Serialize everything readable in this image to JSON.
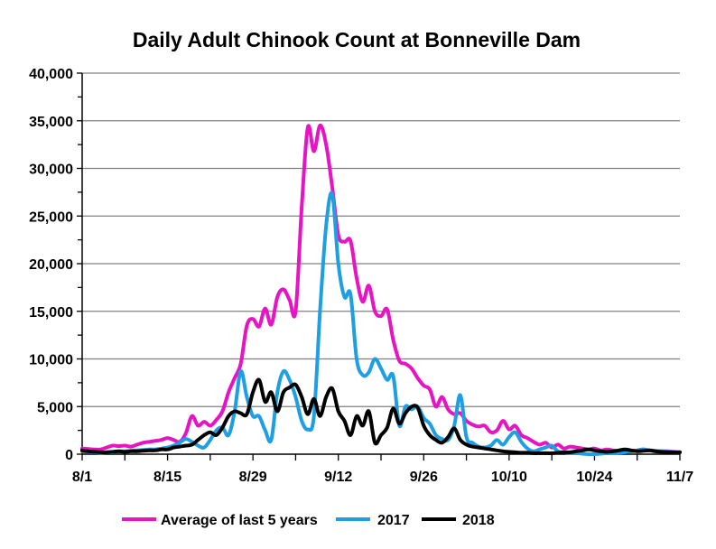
{
  "chart_data": {
    "type": "line",
    "title": "Daily Adult Chinook Count at Bonneville Dam",
    "xlabel": "",
    "ylabel": "",
    "ylim": [
      0,
      40000
    ],
    "xlim": [
      "8/1",
      "11/7"
    ],
    "grid": true,
    "legend_position": "bottom",
    "y_ticks": [
      "0",
      "5,000",
      "10,000",
      "15,000",
      "20,000",
      "25,000",
      "30,000",
      "35,000",
      "40,000"
    ],
    "y_tick_values": [
      0,
      5000,
      10000,
      15000,
      20000,
      25000,
      30000,
      35000,
      40000
    ],
    "x_ticks": [
      "8/1",
      "8/15",
      "8/29",
      "9/12",
      "9/26",
      "10/10",
      "10/24",
      "11/7"
    ],
    "x": [
      "8/1",
      "8/2",
      "8/3",
      "8/4",
      "8/5",
      "8/6",
      "8/7",
      "8/8",
      "8/9",
      "8/10",
      "8/11",
      "8/12",
      "8/13",
      "8/14",
      "8/15",
      "8/16",
      "8/17",
      "8/18",
      "8/19",
      "8/20",
      "8/21",
      "8/22",
      "8/23",
      "8/24",
      "8/25",
      "8/26",
      "8/27",
      "8/28",
      "8/29",
      "8/30",
      "8/31",
      "9/1",
      "9/2",
      "9/3",
      "9/4",
      "9/5",
      "9/6",
      "9/7",
      "9/8",
      "9/9",
      "9/10",
      "9/11",
      "9/12",
      "9/13",
      "9/14",
      "9/15",
      "9/16",
      "9/17",
      "9/18",
      "9/19",
      "9/20",
      "9/21",
      "9/22",
      "9/23",
      "9/24",
      "9/25",
      "9/26",
      "9/27",
      "9/28",
      "9/29",
      "9/30",
      "10/1",
      "10/2",
      "10/3",
      "10/4",
      "10/5",
      "10/6",
      "10/7",
      "10/8",
      "10/9",
      "10/10",
      "10/11",
      "10/12",
      "10/13",
      "10/14",
      "10/15",
      "10/16",
      "10/17",
      "10/18",
      "10/19",
      "10/20",
      "10/21",
      "10/22",
      "10/23",
      "10/24",
      "10/25",
      "10/26",
      "10/27",
      "10/28",
      "10/29",
      "10/30",
      "10/31",
      "11/1",
      "11/2",
      "11/3",
      "11/4",
      "11/5",
      "11/6",
      "11/7"
    ],
    "series": [
      {
        "name": "Average of last 5 years",
        "color": "#e614c3",
        "values": [
          600,
          550,
          500,
          500,
          700,
          900,
          850,
          900,
          800,
          1000,
          1200,
          1300,
          1400,
          1500,
          1700,
          1500,
          1300,
          2200,
          4000,
          3000,
          3400,
          3000,
          3600,
          4500,
          6500,
          8000,
          9500,
          13500,
          14200,
          13400,
          15300,
          13600,
          16500,
          17300,
          16200,
          15000,
          26000,
          34300,
          31800,
          34500,
          32500,
          28000,
          23000,
          22300,
          22400,
          18500,
          16000,
          17700,
          15000,
          14500,
          15200,
          12000,
          9800,
          9500,
          9000,
          8000,
          7200,
          6800,
          5000,
          6000,
          4700,
          4200,
          4300,
          3500,
          3100,
          2900,
          3000,
          2300,
          2500,
          3500,
          2600,
          3000,
          2000,
          1700,
          1300,
          1000,
          1200,
          700,
          1000,
          600,
          800,
          700,
          600,
          500,
          600,
          400,
          500,
          400,
          300,
          400,
          300,
          400,
          500,
          400,
          300,
          300,
          300,
          250,
          200
        ]
      },
      {
        "name": "2017",
        "color": "#1e9fe3",
        "values": [
          300,
          250,
          200,
          150,
          200,
          200,
          300,
          300,
          350,
          400,
          450,
          500,
          500,
          600,
          700,
          900,
          1200,
          1600,
          1300,
          900,
          700,
          1500,
          2500,
          2800,
          2000,
          4500,
          8700,
          6000,
          4000,
          4000,
          2500,
          1500,
          6500,
          8700,
          7800,
          6000,
          3500,
          2600,
          4000,
          15000,
          24000,
          27300,
          20000,
          16500,
          16800,
          10000,
          8300,
          8600,
          10000,
          9000,
          7800,
          8200,
          3000,
          5000,
          4700,
          5000,
          3800,
          3200,
          2000,
          1600,
          1500,
          3000,
          6200,
          1800,
          1200,
          800,
          700,
          900,
          1500,
          1000,
          1800,
          2300,
          1300,
          600,
          300,
          500,
          700,
          900,
          300,
          200,
          100,
          100,
          50,
          0,
          0,
          50,
          100,
          100,
          150,
          200,
          300,
          400,
          500,
          400,
          350,
          300,
          250,
          200,
          200
        ]
      },
      {
        "name": "2018",
        "color": "#000000",
        "values": [
          400,
          300,
          250,
          200,
          200,
          250,
          300,
          250,
          300,
          300,
          350,
          400,
          400,
          500,
          500,
          700,
          800,
          900,
          1000,
          1500,
          2000,
          2300,
          2000,
          2800,
          4000,
          4500,
          4300,
          4200,
          6500,
          7800,
          5500,
          6500,
          4500,
          6500,
          7000,
          7300,
          6000,
          4200,
          5800,
          4000,
          6000,
          6900,
          4500,
          3500,
          2000,
          4000,
          3000,
          4500,
          1200,
          2000,
          2800,
          4800,
          3200,
          4300,
          5000,
          4900,
          3000,
          2000,
          1500,
          1200,
          1800,
          2700,
          1500,
          1000,
          800,
          700,
          600,
          500,
          400,
          300,
          250,
          200,
          150,
          150,
          100,
          100,
          100,
          100,
          150,
          200,
          200,
          300,
          400,
          500,
          400,
          300,
          250,
          300,
          400,
          500,
          400,
          300,
          350,
          400,
          300,
          250,
          200,
          200,
          200
        ]
      }
    ]
  }
}
